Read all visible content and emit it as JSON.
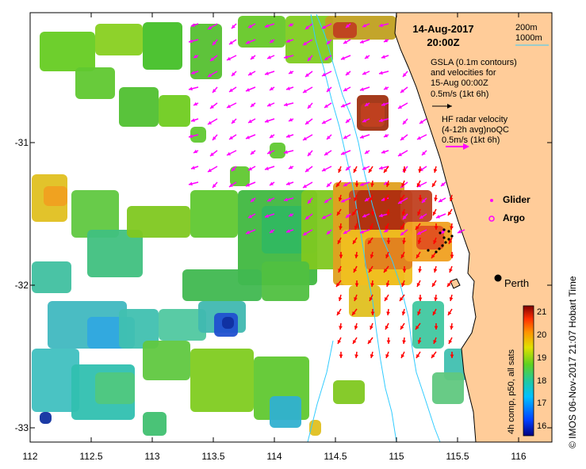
{
  "map": {
    "date": "14-Aug-2017",
    "time": "20:00Z",
    "isobath_labels": [
      "200m",
      "1000m"
    ],
    "legend": {
      "gsla_lines": [
        "GSLA (0.1m contours)",
        "and velocities for",
        "15-Aug 00:00Z"
      ],
      "gsla_scale": "0.5m/s (1kt 6h)",
      "hf_lines": [
        "HF radar velocity",
        "(4-12h avg)noQC"
      ],
      "hf_scale": "0.5m/s (1kt 6h)",
      "glider": "Glider",
      "argo": "Argo"
    },
    "city": "Perth",
    "x_ticks": [
      "112",
      "112.5",
      "113",
      "113.5",
      "114",
      "114.5",
      "115",
      "115.5",
      "116"
    ],
    "y_ticks": [
      "-31",
      "-32",
      "-33"
    ],
    "colorbar": {
      "title": "4h comp, p50, all sats",
      "ticks": [
        "21",
        "20",
        "19",
        "18",
        "17",
        "16"
      ],
      "min": 15.6,
      "max": 21.2
    },
    "credit": "© IMOS 06-Nov-2017 21:07 Hobart Time",
    "colors": {
      "land": "#ffcc99",
      "hf_arrow": "#ff00ff",
      "gsla_arrow": "#ff0000",
      "isobath": "#33ccff",
      "glider": "#000000"
    }
  }
}
